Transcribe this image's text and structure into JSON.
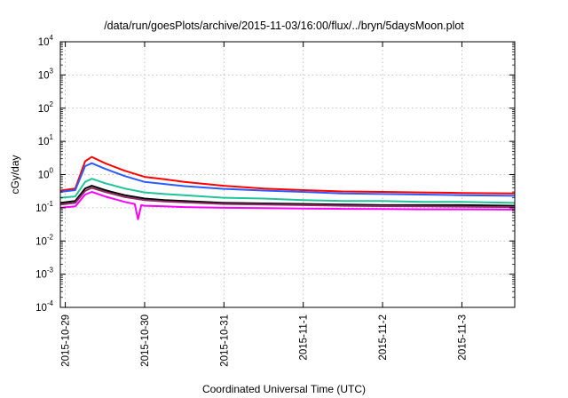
{
  "chart_data": {
    "type": "line",
    "title": "/data/run/goesPlots/archive/2015-11-03/16:00/flux/../bryn/5daysMoon.plot",
    "xlabel": "Coordinated Universal Time (UTC)",
    "ylabel": "cGy/day",
    "yscale": "log",
    "ylim": [
      0.0001,
      10000
    ],
    "y_ticks": [
      {
        "base": "10",
        "exp": "-4"
      },
      {
        "base": "10",
        "exp": "-3"
      },
      {
        "base": "10",
        "exp": "-2"
      },
      {
        "base": "10",
        "exp": "-1"
      },
      {
        "base": "10",
        "exp": "0"
      },
      {
        "base": "10",
        "exp": "1"
      },
      {
        "base": "10",
        "exp": "2"
      },
      {
        "base": "10",
        "exp": "3"
      },
      {
        "base": "10",
        "exp": "4"
      }
    ],
    "xlim": [
      "2015-10-28T22:30",
      "2015-11-03T16:00"
    ],
    "x_ticks": [
      "2015-10-29",
      "2015-10-30",
      "2015-10-31",
      "2015-11-1",
      "2015-11-2",
      "2015-11-3"
    ],
    "grid": true,
    "legend": "none",
    "series": [
      {
        "color": "#ff0000",
        "points": [
          [
            "2015-10-28T22:30",
            0.33
          ],
          [
            "2015-10-29T03:00",
            0.38
          ],
          [
            "2015-10-29T06:00",
            2.5
          ],
          [
            "2015-10-29T08:00",
            3.4
          ],
          [
            "2015-10-29T12:00",
            2.2
          ],
          [
            "2015-10-29T18:00",
            1.3
          ],
          [
            "2015-10-30T00:00",
            0.85
          ],
          [
            "2015-10-30T06:00",
            0.72
          ],
          [
            "2015-10-30T12:00",
            0.6
          ],
          [
            "2015-10-31T00:00",
            0.46
          ],
          [
            "2015-10-31T12:00",
            0.38
          ],
          [
            "2015-11-01T00:00",
            0.34
          ],
          [
            "2015-11-01T12:00",
            0.31
          ],
          [
            "2015-11-02T00:00",
            0.3
          ],
          [
            "2015-11-02T12:00",
            0.29
          ],
          [
            "2015-11-03T00:00",
            0.28
          ],
          [
            "2015-11-03T16:00",
            0.27
          ]
        ]
      },
      {
        "color": "#2a5cff",
        "points": [
          [
            "2015-10-28T22:30",
            0.3
          ],
          [
            "2015-10-29T03:00",
            0.34
          ],
          [
            "2015-10-29T06:00",
            1.8
          ],
          [
            "2015-10-29T08:00",
            2.2
          ],
          [
            "2015-10-29T12:00",
            1.5
          ],
          [
            "2015-10-29T18:00",
            0.9
          ],
          [
            "2015-10-30T00:00",
            0.6
          ],
          [
            "2015-10-30T06:00",
            0.52
          ],
          [
            "2015-10-30T12:00",
            0.45
          ],
          [
            "2015-10-31T00:00",
            0.37
          ],
          [
            "2015-10-31T12:00",
            0.33
          ],
          [
            "2015-11-01T00:00",
            0.3
          ],
          [
            "2015-11-01T12:00",
            0.27
          ],
          [
            "2015-11-02T00:00",
            0.26
          ],
          [
            "2015-11-02T12:00",
            0.25
          ],
          [
            "2015-11-03T00:00",
            0.24
          ],
          [
            "2015-11-03T16:00",
            0.23
          ]
        ]
      },
      {
        "color": "#1fc49a",
        "points": [
          [
            "2015-10-28T22:30",
            0.2
          ],
          [
            "2015-10-29T03:00",
            0.22
          ],
          [
            "2015-10-29T06:00",
            0.6
          ],
          [
            "2015-10-29T08:00",
            0.75
          ],
          [
            "2015-10-29T12:00",
            0.55
          ],
          [
            "2015-10-29T18:00",
            0.38
          ],
          [
            "2015-10-30T00:00",
            0.29
          ],
          [
            "2015-10-30T06:00",
            0.26
          ],
          [
            "2015-10-30T12:00",
            0.24
          ],
          [
            "2015-10-31T00:00",
            0.2
          ],
          [
            "2015-10-31T12:00",
            0.19
          ],
          [
            "2015-11-01T00:00",
            0.17
          ],
          [
            "2015-11-01T12:00",
            0.16
          ],
          [
            "2015-11-02T00:00",
            0.16
          ],
          [
            "2015-11-02T12:00",
            0.15
          ],
          [
            "2015-11-03T00:00",
            0.15
          ],
          [
            "2015-11-03T16:00",
            0.14
          ]
        ]
      },
      {
        "color": "#000000",
        "points": [
          [
            "2015-10-28T22:30",
            0.14
          ],
          [
            "2015-10-29T03:00",
            0.16
          ],
          [
            "2015-10-29T06:00",
            0.38
          ],
          [
            "2015-10-29T08:00",
            0.46
          ],
          [
            "2015-10-29T12:00",
            0.34
          ],
          [
            "2015-10-29T18:00",
            0.24
          ],
          [
            "2015-10-30T00:00",
            0.19
          ],
          [
            "2015-10-30T06:00",
            0.17
          ],
          [
            "2015-10-30T12:00",
            0.16
          ],
          [
            "2015-10-31T00:00",
            0.14
          ],
          [
            "2015-10-31T12:00",
            0.135
          ],
          [
            "2015-11-01T00:00",
            0.13
          ],
          [
            "2015-11-01T12:00",
            0.125
          ],
          [
            "2015-11-02T00:00",
            0.12
          ],
          [
            "2015-11-02T12:00",
            0.12
          ],
          [
            "2015-11-03T00:00",
            0.12
          ],
          [
            "2015-11-03T16:00",
            0.115
          ]
        ]
      },
      {
        "color": "#8e2a6a",
        "points": [
          [
            "2015-10-28T22:30",
            0.125
          ],
          [
            "2015-10-29T03:00",
            0.14
          ],
          [
            "2015-10-29T06:00",
            0.32
          ],
          [
            "2015-10-29T08:00",
            0.4
          ],
          [
            "2015-10-29T12:00",
            0.3
          ],
          [
            "2015-10-29T18:00",
            0.21
          ],
          [
            "2015-10-30T00:00",
            0.17
          ],
          [
            "2015-10-30T06:00",
            0.155
          ],
          [
            "2015-10-30T12:00",
            0.145
          ],
          [
            "2015-10-31T00:00",
            0.13
          ],
          [
            "2015-10-31T12:00",
            0.125
          ],
          [
            "2015-11-01T00:00",
            0.12
          ],
          [
            "2015-11-01T12:00",
            0.115
          ],
          [
            "2015-11-02T00:00",
            0.112
          ],
          [
            "2015-11-02T12:00",
            0.11
          ],
          [
            "2015-11-03T00:00",
            0.108
          ],
          [
            "2015-11-03T16:00",
            0.105
          ]
        ]
      },
      {
        "color": "#ff00ff",
        "points": [
          [
            "2015-10-28T22:30",
            0.1
          ],
          [
            "2015-10-29T03:00",
            0.11
          ],
          [
            "2015-10-29T06:00",
            0.25
          ],
          [
            "2015-10-29T08:00",
            0.3
          ],
          [
            "2015-10-29T12:00",
            0.22
          ],
          [
            "2015-10-29T18:00",
            0.15
          ],
          [
            "2015-10-29T21:00",
            0.13
          ],
          [
            "2015-10-29T22:00",
            0.045
          ],
          [
            "2015-10-29T23:00",
            0.12
          ],
          [
            "2015-10-30T00:00",
            0.115
          ],
          [
            "2015-10-30T06:00",
            0.11
          ],
          [
            "2015-10-30T12:00",
            0.105
          ],
          [
            "2015-10-31T00:00",
            0.1
          ],
          [
            "2015-10-31T12:00",
            0.098
          ],
          [
            "2015-11-01T00:00",
            0.095
          ],
          [
            "2015-11-01T12:00",
            0.093
          ],
          [
            "2015-11-02T00:00",
            0.092
          ],
          [
            "2015-11-02T12:00",
            0.09
          ],
          [
            "2015-11-03T00:00",
            0.09
          ],
          [
            "2015-11-03T16:00",
            0.088
          ]
        ]
      }
    ]
  }
}
